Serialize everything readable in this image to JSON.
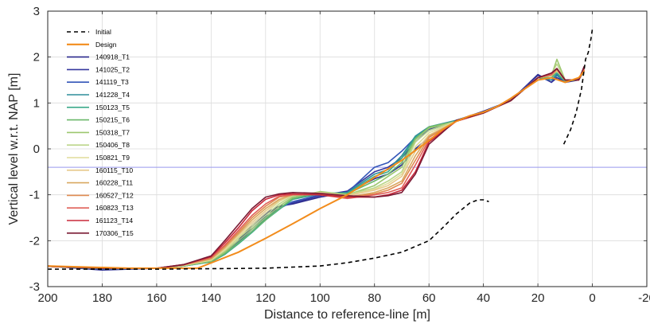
{
  "chart_data": {
    "type": "line",
    "xlabel": "Distance to reference-line [m]",
    "ylabel": "Vertical level w.r.t. NAP [m]",
    "xlim": [
      200,
      -20
    ],
    "ylim": [
      -3,
      3
    ],
    "x_reversed": true,
    "grid": true,
    "legend_position": "top-left",
    "xticks": [
      200,
      180,
      160,
      140,
      120,
      100,
      80,
      60,
      40,
      20,
      0,
      -20
    ],
    "xtick_labels": [
      "200",
      "180",
      "160",
      "140",
      "120",
      "100",
      "80",
      "60",
      "40",
      "20",
      "0",
      "-20"
    ],
    "yticks": [
      3,
      2,
      1,
      0,
      -1,
      -2,
      -3
    ],
    "ytick_labels": [
      "3",
      "2",
      "1",
      "0",
      "-1",
      "-2",
      "-3"
    ],
    "reference_line": {
      "y": -0.4,
      "color": "#9999ee"
    },
    "initial": {
      "name": "Initial",
      "color": "#000000",
      "style": "dashed",
      "segments": [
        {
          "x": [
            200,
            180,
            160,
            140,
            120,
            100,
            90,
            80,
            70,
            60,
            55,
            50,
            45,
            42,
            40,
            38
          ],
          "y": [
            -2.62,
            -2.62,
            -2.62,
            -2.61,
            -2.6,
            -2.55,
            -2.48,
            -2.38,
            -2.25,
            -2.0,
            -1.72,
            -1.42,
            -1.18,
            -1.11,
            -1.11,
            -1.15
          ]
        },
        {
          "x": [
            10.5,
            8,
            6,
            4,
            2.5,
            1.5,
            0.5,
            0
          ],
          "y": [
            0.1,
            0.42,
            0.78,
            1.3,
            1.95,
            2.1,
            2.4,
            2.6
          ]
        }
      ]
    },
    "design": {
      "name": "Design",
      "color": "#f28c1c",
      "x": [
        200,
        170,
        145,
        130,
        120,
        110,
        100,
        90,
        80,
        70,
        60,
        55,
        50,
        45,
        40,
        35,
        30,
        25,
        20,
        15,
        10,
        5,
        3
      ],
      "y": [
        -2.55,
        -2.6,
        -2.6,
        -2.25,
        -1.95,
        -1.63,
        -1.3,
        -1.0,
        -0.62,
        -0.25,
        0.18,
        0.42,
        0.6,
        0.72,
        0.8,
        0.92,
        1.1,
        1.3,
        1.5,
        1.55,
        1.45,
        1.55,
        1.7
      ]
    },
    "survey_x": [
      200,
      180,
      160,
      150,
      140,
      135,
      130,
      125,
      120,
      115,
      110,
      100,
      90,
      80,
      75,
      70,
      65,
      60,
      50,
      40,
      30,
      20,
      15,
      13,
      10,
      5,
      3
    ],
    "series": [
      {
        "name": "140918_T1",
        "color": "#2b2a8e",
        "values": [
          -2.55,
          -2.64,
          -2.6,
          -2.55,
          -2.45,
          -2.25,
          -2.0,
          -1.65,
          -1.4,
          -1.25,
          -1.2,
          -1.05,
          -0.95,
          -0.65,
          -0.55,
          -0.35,
          0.0,
          0.25,
          0.62,
          0.82,
          1.05,
          1.62,
          1.45,
          1.55,
          1.45,
          1.5,
          1.75
        ]
      },
      {
        "name": "141025_T2",
        "color": "#35379e",
        "values": [
          -2.55,
          -2.63,
          -2.6,
          -2.55,
          -2.45,
          -2.27,
          -2.02,
          -1.7,
          -1.43,
          -1.26,
          -1.18,
          -1.02,
          -0.92,
          -0.5,
          -0.4,
          -0.2,
          0.15,
          0.42,
          0.62,
          0.8,
          1.06,
          1.6,
          1.45,
          1.6,
          1.45,
          1.52,
          1.72
        ]
      },
      {
        "name": "141119_T3",
        "color": "#3355b8",
        "values": [
          -2.55,
          -2.62,
          -2.6,
          -2.55,
          -2.45,
          -2.28,
          -2.03,
          -1.75,
          -1.48,
          -1.3,
          -1.15,
          -1.0,
          -0.95,
          -0.4,
          -0.3,
          -0.05,
          0.25,
          0.4,
          0.6,
          0.8,
          1.05,
          1.55,
          1.5,
          1.62,
          1.48,
          1.5,
          1.7
        ]
      },
      {
        "name": "141228_T4",
        "color": "#2d8e9a",
        "values": [
          -2.56,
          -2.61,
          -2.6,
          -2.55,
          -2.46,
          -2.3,
          -2.05,
          -1.8,
          -1.52,
          -1.3,
          -1.1,
          -0.98,
          -0.95,
          -0.55,
          -0.45,
          -0.15,
          0.28,
          0.48,
          0.62,
          0.8,
          1.05,
          1.55,
          1.5,
          1.6,
          1.48,
          1.5,
          1.7
        ]
      },
      {
        "name": "150123_T5",
        "color": "#3caa8a",
        "values": [
          -2.56,
          -2.61,
          -2.6,
          -2.55,
          -2.46,
          -2.3,
          -2.07,
          -1.82,
          -1.55,
          -1.32,
          -1.1,
          -0.96,
          -0.97,
          -0.6,
          -0.5,
          -0.2,
          0.25,
          0.45,
          0.6,
          0.8,
          1.05,
          1.55,
          1.55,
          1.65,
          1.48,
          1.5,
          1.7
        ]
      },
      {
        "name": "150215_T6",
        "color": "#6bb86a",
        "values": [
          -2.56,
          -2.6,
          -2.6,
          -2.55,
          -2.45,
          -2.28,
          -2.05,
          -1.8,
          -1.55,
          -1.3,
          -1.08,
          -0.95,
          -0.98,
          -0.7,
          -0.55,
          -0.3,
          0.22,
          0.48,
          0.6,
          0.8,
          1.05,
          1.55,
          1.55,
          1.7,
          1.48,
          1.5,
          1.72
        ]
      },
      {
        "name": "150318_T7",
        "color": "#9cc76e",
        "values": [
          -2.56,
          -2.6,
          -2.6,
          -2.54,
          -2.44,
          -2.25,
          -2.0,
          -1.75,
          -1.5,
          -1.25,
          -1.05,
          -0.93,
          -1.0,
          -0.8,
          -0.6,
          -0.4,
          0.2,
          0.45,
          0.6,
          0.8,
          1.05,
          1.55,
          1.6,
          1.95,
          1.5,
          1.5,
          1.72
        ]
      },
      {
        "name": "150406_T8",
        "color": "#bcd68a",
        "values": [
          -2.56,
          -2.6,
          -2.6,
          -2.54,
          -2.42,
          -2.22,
          -1.95,
          -1.7,
          -1.45,
          -1.2,
          -1.02,
          -0.95,
          -1.0,
          -0.85,
          -0.7,
          -0.5,
          0.15,
          0.4,
          0.6,
          0.8,
          1.05,
          1.55,
          1.62,
          1.85,
          1.5,
          1.5,
          1.72
        ]
      },
      {
        "name": "150821_T9",
        "color": "#e0dc9a",
        "values": [
          -2.56,
          -2.6,
          -2.6,
          -2.54,
          -2.42,
          -2.2,
          -1.92,
          -1.65,
          -1.4,
          -1.15,
          -1.0,
          -0.95,
          -1.02,
          -0.88,
          -0.75,
          -0.55,
          0.05,
          0.35,
          0.6,
          0.8,
          1.05,
          1.55,
          1.6,
          1.75,
          1.5,
          1.5,
          1.72
        ]
      },
      {
        "name": "160115_T10",
        "color": "#e6c98c",
        "values": [
          -2.56,
          -2.6,
          -2.6,
          -2.53,
          -2.4,
          -2.17,
          -1.88,
          -1.6,
          -1.35,
          -1.12,
          -1.0,
          -0.96,
          -1.02,
          -0.9,
          -0.8,
          -0.6,
          -0.05,
          0.3,
          0.6,
          0.78,
          1.05,
          1.55,
          1.6,
          1.7,
          1.5,
          1.5,
          1.72
        ]
      },
      {
        "name": "160228_T11",
        "color": "#d9a860",
        "values": [
          -2.56,
          -2.6,
          -2.6,
          -2.53,
          -2.4,
          -2.15,
          -1.85,
          -1.55,
          -1.3,
          -1.1,
          -1.0,
          -0.98,
          -1.05,
          -0.95,
          -0.85,
          -0.7,
          -0.15,
          0.28,
          0.6,
          0.78,
          1.05,
          1.55,
          1.6,
          1.72,
          1.5,
          1.5,
          1.72
        ]
      },
      {
        "name": "160527_T12",
        "color": "#e08a50",
        "values": [
          -2.56,
          -2.6,
          -2.6,
          -2.53,
          -2.38,
          -2.12,
          -1.82,
          -1.5,
          -1.25,
          -1.05,
          -1.0,
          -1.0,
          -1.05,
          -0.98,
          -0.9,
          -0.75,
          -0.25,
          0.25,
          0.6,
          0.78,
          1.05,
          1.55,
          1.62,
          1.75,
          1.5,
          1.5,
          1.72
        ]
      },
      {
        "name": "160823_T13",
        "color": "#e06058",
        "values": [
          -2.56,
          -2.6,
          -2.6,
          -2.52,
          -2.36,
          -2.1,
          -1.78,
          -1.45,
          -1.2,
          -1.03,
          -1.0,
          -1.0,
          -1.08,
          -1.0,
          -0.95,
          -0.85,
          -0.35,
          0.2,
          0.6,
          0.78,
          1.05,
          1.55,
          1.62,
          1.75,
          1.5,
          1.5,
          1.75
        ]
      },
      {
        "name": "161123_T14",
        "color": "#c8283a",
        "values": [
          -2.56,
          -2.6,
          -2.6,
          -2.52,
          -2.35,
          -2.05,
          -1.72,
          -1.35,
          -1.1,
          -1.0,
          -0.98,
          -1.0,
          -1.05,
          -1.05,
          -1.0,
          -0.9,
          -0.5,
          0.15,
          0.6,
          0.78,
          1.05,
          1.55,
          1.65,
          1.75,
          1.5,
          1.5,
          1.78
        ]
      },
      {
        "name": "170306_T15",
        "color": "#7a1a34",
        "values": [
          -2.56,
          -2.6,
          -2.6,
          -2.52,
          -2.33,
          -2.0,
          -1.65,
          -1.3,
          -1.05,
          -0.98,
          -0.95,
          -0.97,
          -1.02,
          -1.05,
          -1.02,
          -0.95,
          -0.55,
          0.1,
          0.62,
          0.78,
          1.05,
          1.55,
          1.65,
          1.75,
          1.5,
          1.5,
          1.8
        ]
      }
    ]
  }
}
